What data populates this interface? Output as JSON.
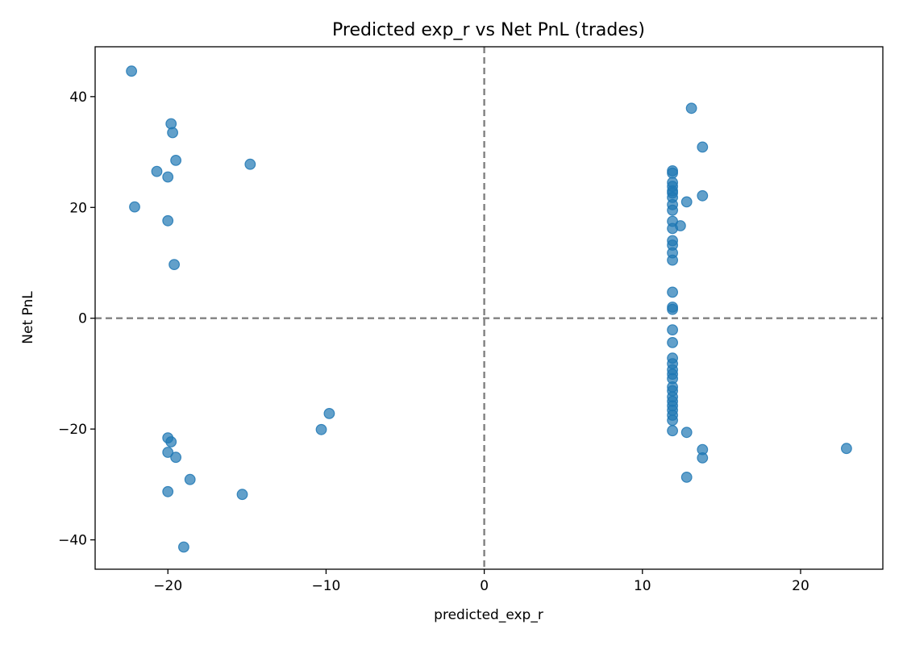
{
  "chart_data": {
    "type": "scatter",
    "title": "Predicted exp_r vs Net PnL (trades)",
    "xlabel": "predicted_exp_r",
    "ylabel": "Net PnL",
    "xlim": [
      -24.6,
      25.2
    ],
    "ylim": [
      -45.3,
      49.0
    ],
    "xticks": [
      -20,
      -10,
      0,
      10,
      20
    ],
    "yticks": [
      -40,
      -20,
      0,
      20,
      40
    ],
    "xtick_labels": [
      "−20",
      "−10",
      "0",
      "10",
      "20"
    ],
    "ytick_labels": [
      "−40",
      "−20",
      "0",
      "20",
      "40"
    ],
    "reference_lines": {
      "x": 0,
      "y": 0,
      "style": "dashed",
      "color": "#808080"
    },
    "grid": false,
    "legend": "none",
    "marker_color": "#1f77b4",
    "marker_alpha": 0.7,
    "series": [
      {
        "points": [
          [
            -22.3,
            44.6
          ],
          [
            -19.8,
            35.1
          ],
          [
            -19.7,
            33.5
          ],
          [
            -19.5,
            28.5
          ],
          [
            -20.7,
            26.5
          ],
          [
            -20.0,
            25.5
          ],
          [
            -14.8,
            27.8
          ],
          [
            -22.1,
            20.1
          ],
          [
            -20.0,
            17.6
          ],
          [
            -19.6,
            9.7
          ],
          [
            -20.0,
            -21.6
          ],
          [
            -19.8,
            -22.3
          ],
          [
            -20.0,
            -24.2
          ],
          [
            -19.5,
            -25.1
          ],
          [
            -18.6,
            -29.1
          ],
          [
            -20.0,
            -31.3
          ],
          [
            -15.3,
            -31.8
          ],
          [
            -19.0,
            -41.3
          ],
          [
            -10.3,
            -20.1
          ],
          [
            -9.8,
            -17.2
          ],
          [
            13.1,
            37.9
          ],
          [
            13.8,
            30.9
          ],
          [
            11.9,
            26.6
          ],
          [
            11.9,
            26.2
          ],
          [
            11.9,
            24.5
          ],
          [
            11.9,
            23.8
          ],
          [
            11.9,
            23.0
          ],
          [
            11.9,
            22.6
          ],
          [
            11.9,
            21.8
          ],
          [
            12.8,
            21.0
          ],
          [
            13.8,
            22.1
          ],
          [
            11.9,
            20.5
          ],
          [
            11.9,
            19.5
          ],
          [
            11.9,
            17.5
          ],
          [
            11.9,
            16.2
          ],
          [
            12.4,
            16.7
          ],
          [
            11.9,
            14.0
          ],
          [
            11.9,
            13.2
          ],
          [
            11.9,
            11.8
          ],
          [
            11.9,
            10.5
          ],
          [
            11.9,
            4.7
          ],
          [
            11.9,
            2.0
          ],
          [
            11.9,
            1.6
          ],
          [
            11.9,
            -2.1
          ],
          [
            11.9,
            -4.4
          ],
          [
            11.9,
            -7.2
          ],
          [
            11.9,
            -8.2
          ],
          [
            11.9,
            -9.3
          ],
          [
            11.9,
            -10.1
          ],
          [
            11.9,
            -10.9
          ],
          [
            11.9,
            -12.4
          ],
          [
            11.9,
            -13.1
          ],
          [
            11.9,
            -14.2
          ],
          [
            11.9,
            -15.0
          ],
          [
            11.9,
            -15.8
          ],
          [
            11.9,
            -16.6
          ],
          [
            11.9,
            -17.5
          ],
          [
            11.9,
            -18.4
          ],
          [
            11.9,
            -20.3
          ],
          [
            12.8,
            -20.6
          ],
          [
            13.8,
            -23.7
          ],
          [
            13.8,
            -25.2
          ],
          [
            12.8,
            -28.7
          ],
          [
            22.9,
            -23.5
          ]
        ]
      }
    ]
  }
}
